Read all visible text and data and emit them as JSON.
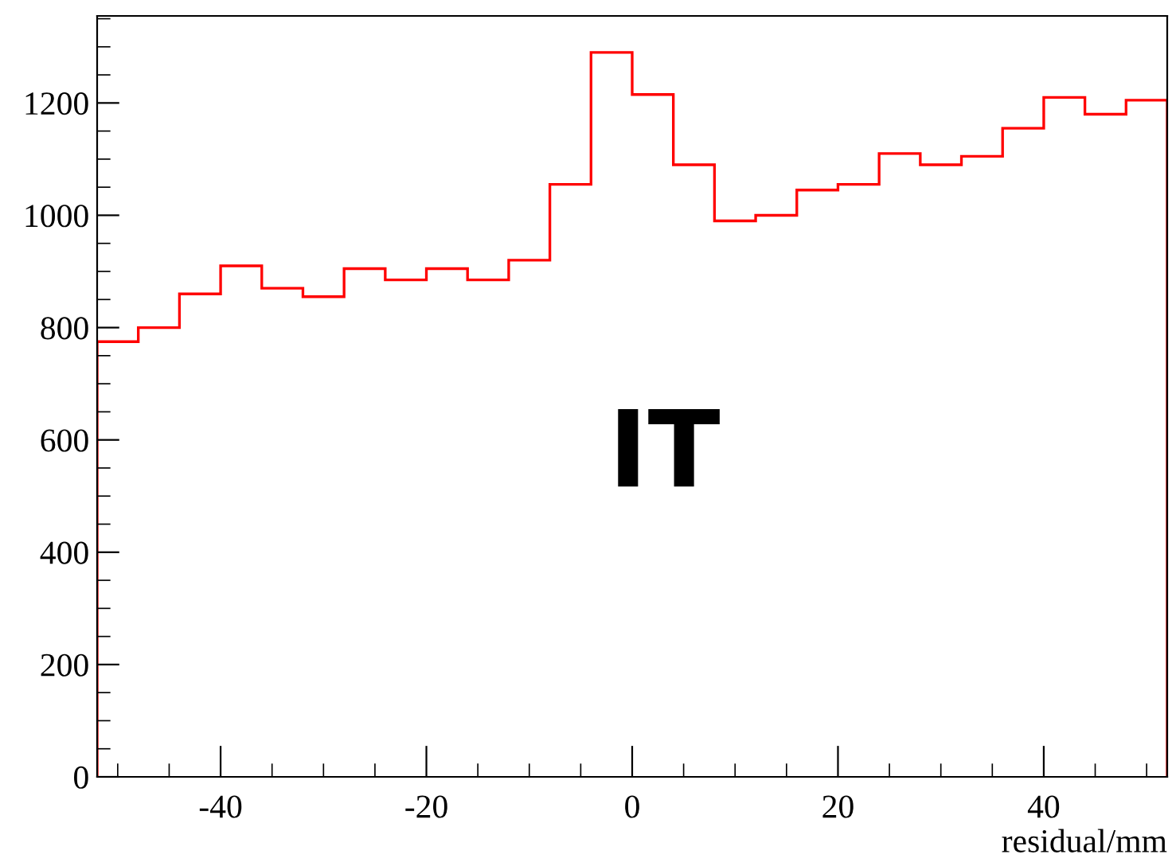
{
  "chart_data": {
    "type": "histogram",
    "xlabel": "residual/mm",
    "annotations": [
      "IT"
    ],
    "color": "#ff0000",
    "bins": [
      -52,
      -48,
      -44,
      -40,
      -36,
      -32,
      -28,
      -24,
      -20,
      -16,
      -12,
      -8,
      -4,
      0,
      4,
      8,
      12,
      16,
      20,
      24,
      28,
      32,
      36,
      40,
      44,
      48,
      52
    ],
    "values": [
      775,
      800,
      860,
      910,
      870,
      855,
      905,
      885,
      905,
      885,
      920,
      1055,
      1290,
      1215,
      1090,
      990,
      1000,
      1045,
      1055,
      1110,
      1090,
      1105,
      1155,
      1210,
      1180,
      1205
    ],
    "xlim": [
      -52,
      52
    ],
    "ylim": [
      0,
      1355
    ],
    "xticks": [
      -40,
      -20,
      0,
      20,
      40
    ],
    "yticks": [
      0,
      200,
      400,
      600,
      800,
      1000,
      1200
    ],
    "grid": false,
    "legend": false
  }
}
